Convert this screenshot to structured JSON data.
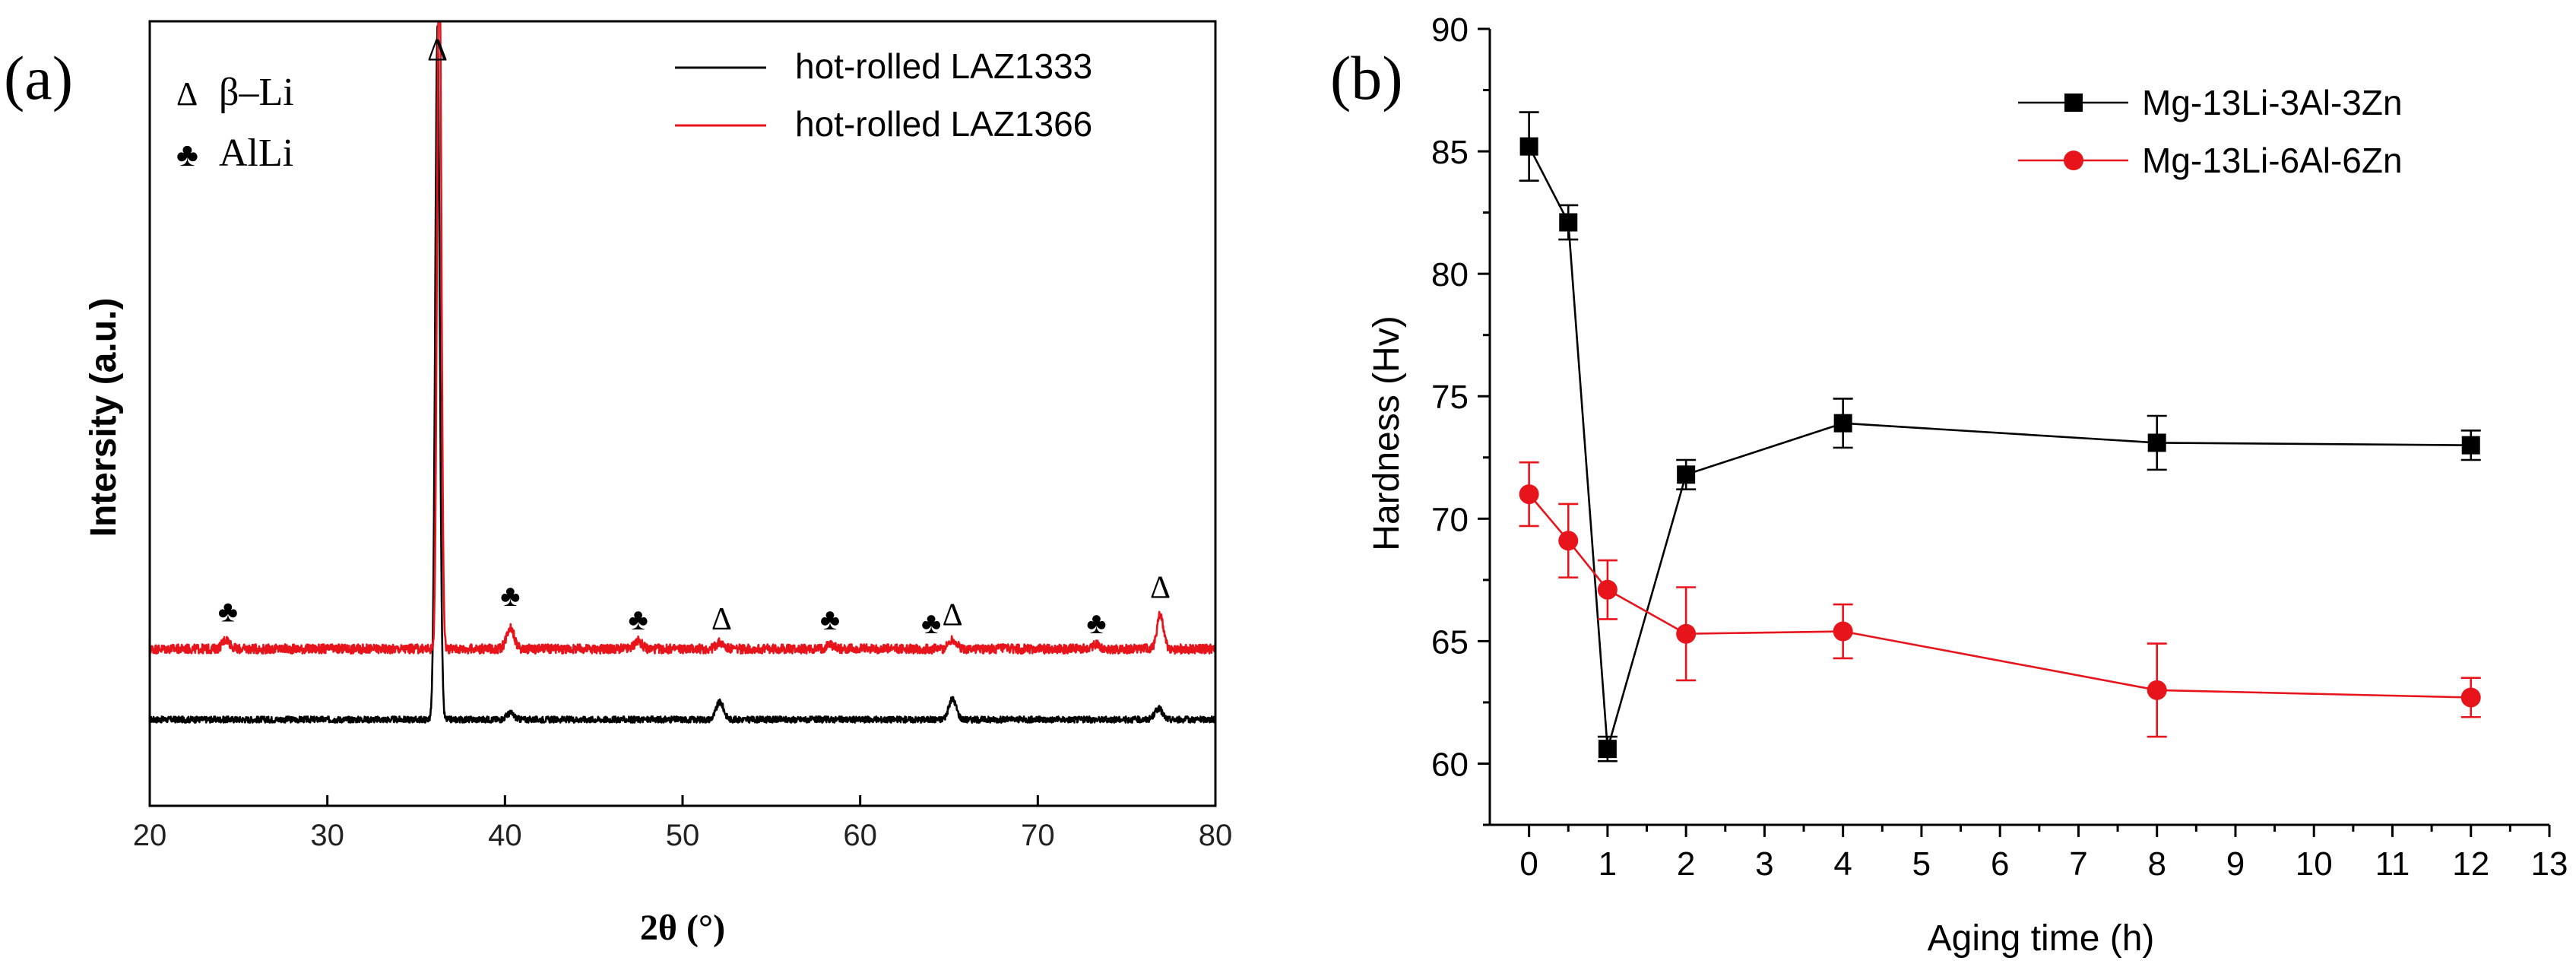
{
  "chart_data": [
    {
      "panel": "(a)",
      "type": "line",
      "title": "",
      "xlabel": "2θ (°)",
      "ylabel": "Intersity (a.u.)",
      "xlim": [
        20,
        80
      ],
      "x_ticks": [
        20,
        30,
        40,
        50,
        60,
        70,
        80
      ],
      "grid": false,
      "series": [
        {
          "name": "hot-rolled LAZ1333",
          "color": "#000000",
          "baseline": 0.11,
          "noise": 0.004,
          "peaks": [
            {
              "x": 36.2,
              "height": 0.88,
              "width": 0.18
            },
            {
              "x": 40.3,
              "height": 0.008,
              "width": 0.3
            },
            {
              "x": 52.1,
              "height": 0.022,
              "width": 0.3
            },
            {
              "x": 65.2,
              "height": 0.026,
              "width": 0.3
            },
            {
              "x": 76.8,
              "height": 0.014,
              "width": 0.3
            }
          ]
        },
        {
          "name": "hot-rolled LAZ1366",
          "color": "#e8141b",
          "baseline": 0.2,
          "noise": 0.006,
          "peaks": [
            {
              "x": 24.3,
              "height": 0.012,
              "width": 0.3
            },
            {
              "x": 36.3,
              "height": 0.97,
              "width": 0.16
            },
            {
              "x": 40.3,
              "height": 0.028,
              "width": 0.3
            },
            {
              "x": 47.5,
              "height": 0.01,
              "width": 0.3
            },
            {
              "x": 52.1,
              "height": 0.008,
              "width": 0.3
            },
            {
              "x": 58.3,
              "height": 0.006,
              "width": 0.3
            },
            {
              "x": 65.2,
              "height": 0.012,
              "width": 0.3
            },
            {
              "x": 73.3,
              "height": 0.006,
              "width": 0.3
            },
            {
              "x": 76.9,
              "height": 0.045,
              "width": 0.25
            }
          ]
        }
      ],
      "phase_legend": [
        {
          "symbol": "Δ",
          "label": "β–Li"
        },
        {
          "symbol": "♣",
          "label": "AlLi"
        }
      ],
      "annotations": [
        {
          "symbol": "♣",
          "x": 24.4,
          "y": 0.235
        },
        {
          "symbol": "Δ",
          "x": 36.2,
          "y": 0.95
        },
        {
          "symbol": "♣",
          "x": 40.3,
          "y": 0.255
        },
        {
          "symbol": "♣",
          "x": 47.5,
          "y": 0.225
        },
        {
          "symbol": "Δ",
          "x": 52.2,
          "y": 0.225
        },
        {
          "symbol": "♣",
          "x": 58.3,
          "y": 0.225
        },
        {
          "symbol": "♣",
          "x": 64.0,
          "y": 0.22
        },
        {
          "symbol": "Δ",
          "x": 65.2,
          "y": 0.23
        },
        {
          "symbol": "♣",
          "x": 73.3,
          "y": 0.22
        },
        {
          "symbol": "Δ",
          "x": 76.9,
          "y": 0.265
        }
      ]
    },
    {
      "panel": "(b)",
      "type": "line",
      "title": "",
      "xlabel": "Aging time (h)",
      "ylabel": "Hardness (Hv)",
      "xlim": [
        -0.5,
        13
      ],
      "ylim": [
        57.5,
        90
      ],
      "x_ticks": [
        0,
        1,
        2,
        3,
        4,
        5,
        6,
        7,
        8,
        9,
        10,
        11,
        12,
        13
      ],
      "y_ticks": [
        60,
        65,
        70,
        75,
        80,
        85,
        90
      ],
      "grid": false,
      "legend_position": "top-right",
      "series": [
        {
          "name": "Mg-13Li-3Al-3Zn",
          "color": "#000000",
          "marker": "square",
          "x": [
            0,
            0.5,
            1,
            2,
            4,
            8,
            12
          ],
          "y": [
            85.2,
            82.1,
            60.6,
            71.8,
            73.9,
            73.1,
            73.0
          ],
          "error": [
            1.4,
            0.7,
            0.5,
            0.6,
            1.0,
            1.1,
            0.6
          ]
        },
        {
          "name": "Mg-13Li-6Al-6Zn",
          "color": "#e8141b",
          "marker": "circle",
          "x": [
            0,
            0.5,
            1,
            2,
            4,
            8,
            12
          ],
          "y": [
            71.0,
            69.1,
            67.1,
            65.3,
            65.4,
            63.0,
            62.7
          ],
          "error": [
            1.3,
            1.5,
            1.2,
            1.9,
            1.1,
            1.9,
            0.8
          ]
        }
      ]
    }
  ]
}
